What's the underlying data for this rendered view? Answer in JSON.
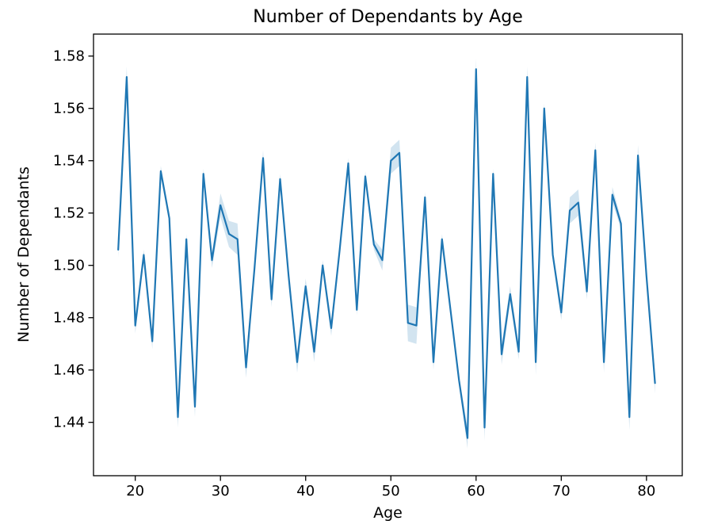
{
  "chart_data": {
    "type": "line",
    "title": "Number of Dependants by Age",
    "xlabel": "Age",
    "ylabel": "Number of Dependants",
    "x": [
      18,
      19,
      20,
      21,
      22,
      23,
      24,
      25,
      26,
      27,
      28,
      29,
      30,
      31,
      32,
      33,
      34,
      35,
      36,
      37,
      38,
      39,
      40,
      41,
      42,
      43,
      44,
      45,
      46,
      47,
      48,
      49,
      50,
      51,
      52,
      53,
      54,
      55,
      56,
      57,
      58,
      59,
      60,
      61,
      62,
      63,
      64,
      65,
      66,
      67,
      68,
      69,
      70,
      71,
      72,
      73,
      74,
      75,
      76,
      77,
      78,
      79,
      80,
      81
    ],
    "y": [
      1.506,
      1.572,
      1.477,
      1.504,
      1.471,
      1.536,
      1.518,
      1.442,
      1.51,
      1.446,
      1.535,
      1.502,
      1.523,
      1.512,
      1.51,
      1.461,
      1.499,
      1.541,
      1.487,
      1.533,
      1.496,
      1.463,
      1.492,
      1.467,
      1.5,
      1.476,
      1.506,
      1.539,
      1.483,
      1.534,
      1.508,
      1.502,
      1.54,
      1.543,
      1.478,
      1.477,
      1.526,
      1.463,
      1.51,
      1.483,
      1.456,
      1.434,
      1.575,
      1.438,
      1.535,
      1.466,
      1.489,
      1.467,
      1.572,
      1.463,
      1.56,
      1.504,
      1.482,
      1.521,
      1.524,
      1.49,
      1.544,
      1.463,
      1.527,
      1.516,
      1.442,
      1.542,
      1.496,
      1.455
    ],
    "ci": [
      0.003,
      0.004,
      0.003,
      0.002,
      0.003,
      0.002,
      0.002,
      0.004,
      0.002,
      0.004,
      0.002,
      0.003,
      0.0045,
      0.005,
      0.006,
      0.004,
      0.002,
      0.003,
      0.003,
      0.002,
      0.002,
      0.004,
      0.003,
      0.004,
      0.002,
      0.003,
      0.002,
      0.002,
      0.002,
      0.002,
      0.002,
      0.004,
      0.005,
      0.005,
      0.007,
      0.007,
      0.002,
      0.003,
      0.002,
      0.002,
      0.002,
      0.004,
      0.004,
      0.005,
      0.002,
      0.004,
      0.003,
      0.003,
      0.004,
      0.005,
      0.002,
      0.002,
      0.003,
      0.005,
      0.005,
      0.003,
      0.003,
      0.004,
      0.003,
      0.002,
      0.005,
      0.004,
      0.002,
      0.004
    ],
    "x_ticks": [
      20,
      30,
      40,
      50,
      60,
      70,
      80
    ],
    "y_ticks": [
      1.44,
      1.46,
      1.48,
      1.5,
      1.52,
      1.54,
      1.56,
      1.58
    ],
    "y_tick_decimals": 2,
    "xlim": [
      15.1,
      84.2
    ],
    "ylim": [
      1.4196,
      1.5884
    ],
    "grid": false,
    "legend": "none",
    "line_color": "#1f77b4",
    "band_color": "#1f77b4",
    "band_opacity": 0.2,
    "spine_color": "#000000",
    "tick_color": "#000000"
  }
}
